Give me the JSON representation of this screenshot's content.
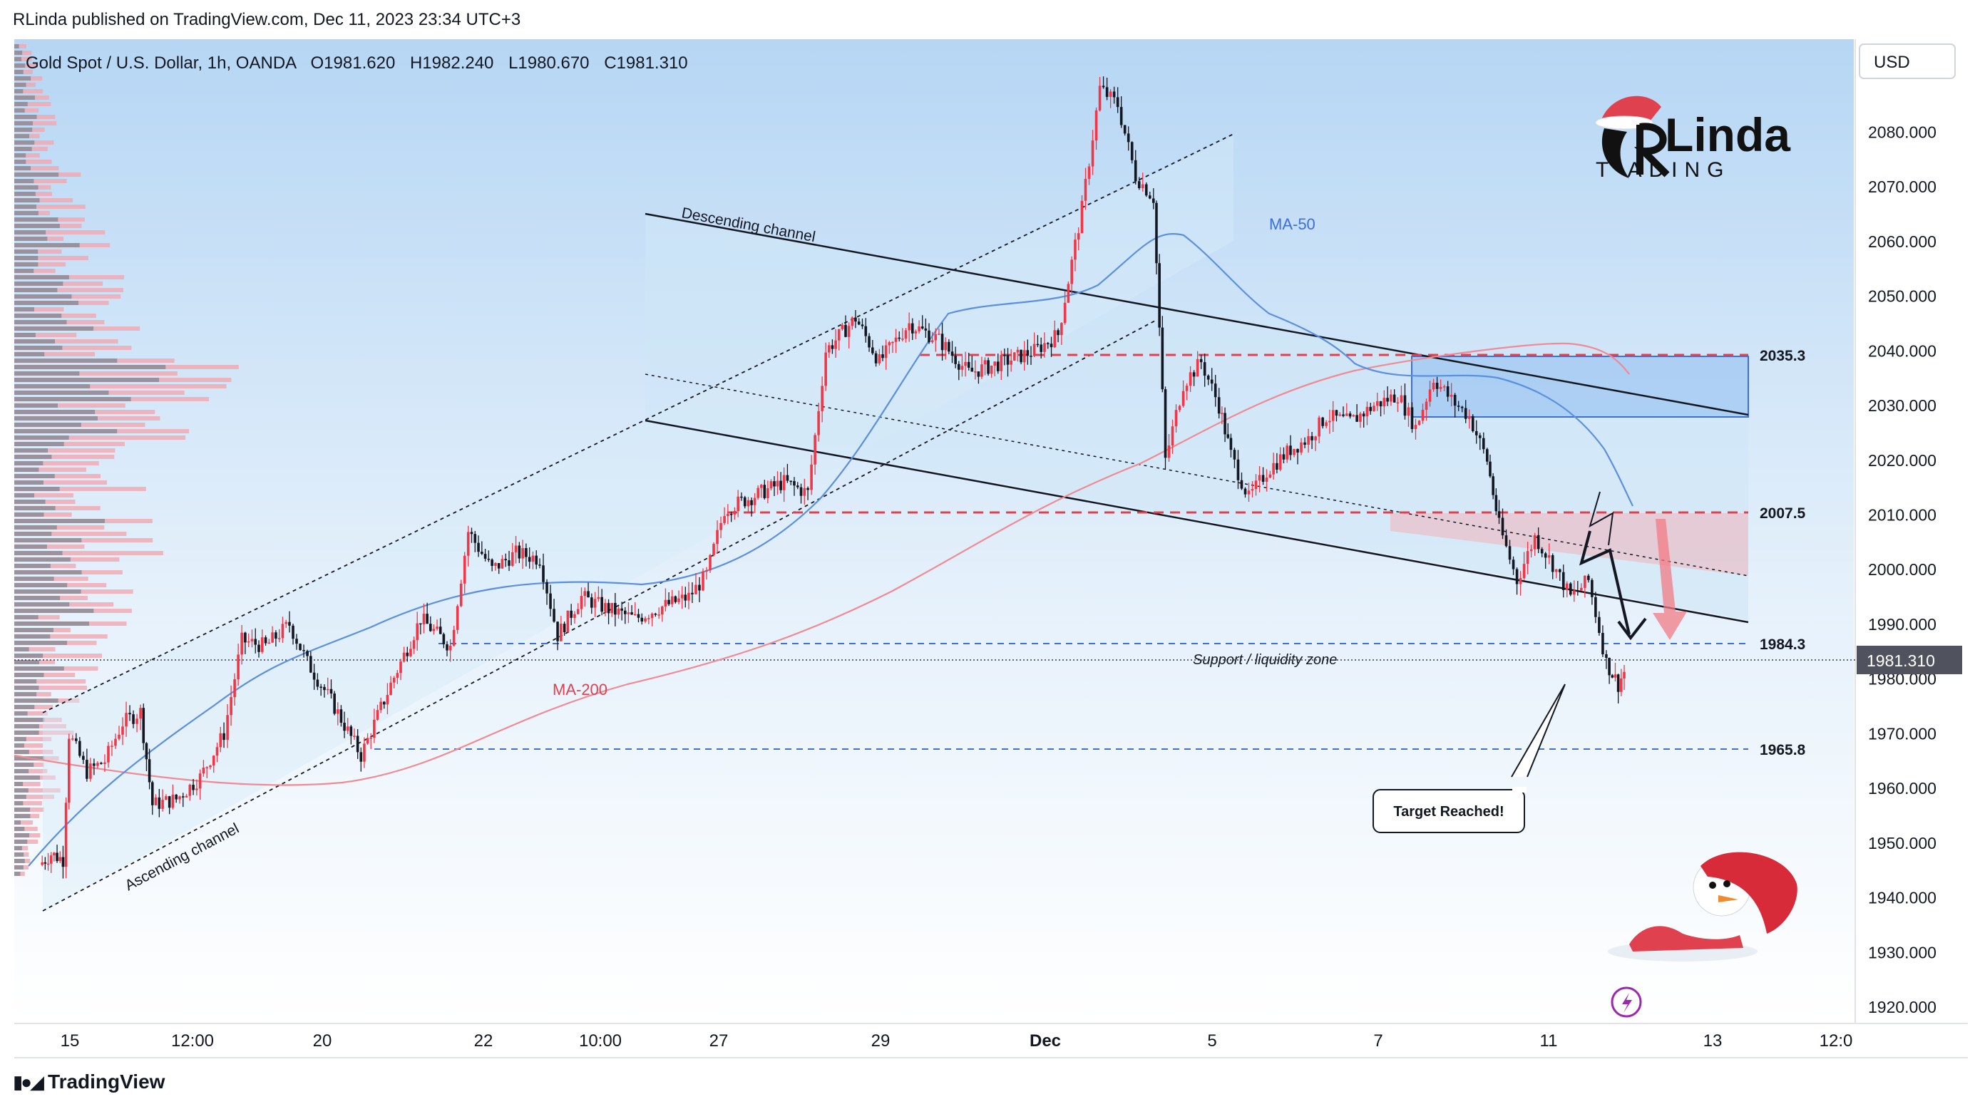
{
  "header": {
    "published": "RLinda published on TradingView.com, Dec 11, 2023 23:34 UTC+3"
  },
  "legend": {
    "symbol": "Gold Spot / U.S. Dollar, 1h, OANDA",
    "open": "O1981.620",
    "high": "H1982.240",
    "low": "L1980.670",
    "close": "C1981.310"
  },
  "currency_button": "USD",
  "brand": {
    "line1": "Linda",
    "line2": "T ADING"
  },
  "footer": {
    "logo_text": "TradingView"
  },
  "annotations": {
    "descending_channel": "Descending channel",
    "ascending_channel": "Ascending channel",
    "ma50": "MA-50",
    "ma200": "MA-200",
    "support_zone": "Support / liquidity zone",
    "target": "Target Reached!"
  },
  "levels": [
    {
      "value": 2035.3,
      "label": "2035.3",
      "style": "red-dashed"
    },
    {
      "value": 2007.5,
      "label": "2007.5",
      "style": "red-dashed"
    },
    {
      "value": 1984.3,
      "label": "1984.3",
      "style": "blue-dashed"
    },
    {
      "value": 1965.8,
      "label": "1965.8",
      "style": "blue-dashed"
    }
  ],
  "last_price": "1981.310",
  "colors": {
    "up": "#f23645",
    "down": "#131722",
    "ma50": "#5b8fe0",
    "ma200": "#f08a93",
    "level_red": "#e0414f",
    "level_blue": "#3c6fd8",
    "bg_top": "#b9d9f5",
    "bg_bottom": "#ffffff"
  },
  "chart_data": {
    "type": "candlestick",
    "title": "Gold Spot / U.S. Dollar, 1h, OANDA",
    "ylim": [
      1917,
      2097
    ],
    "y_ticks": [
      "2080.000",
      "2070.000",
      "2060.000",
      "2050.000",
      "2040.000",
      "2030.000",
      "2020.000",
      "2010.000",
      "2000.000",
      "1990.000",
      "1980.000",
      "1970.000",
      "1960.000",
      "1950.000",
      "1940.000",
      "1930.000",
      "1920.000"
    ],
    "x_ticks": [
      "15",
      "12:00",
      "20",
      "22",
      "10:00",
      "27",
      "29",
      "Dec",
      "5",
      "7",
      "11",
      "13",
      "12:0"
    ],
    "price_path": [
      [
        0,
        1946
      ],
      [
        0.01,
        1948
      ],
      [
        0.02,
        1947
      ],
      [
        0.025,
        1970
      ],
      [
        0.04,
        1963
      ],
      [
        0.055,
        1965
      ],
      [
        0.07,
        1972
      ],
      [
        0.085,
        1974
      ],
      [
        0.095,
        1957
      ],
      [
        0.115,
        1958
      ],
      [
        0.135,
        1962
      ],
      [
        0.155,
        1970
      ],
      [
        0.17,
        1987
      ],
      [
        0.19,
        1986
      ],
      [
        0.21,
        1990
      ],
      [
        0.225,
        1983
      ],
      [
        0.245,
        1976
      ],
      [
        0.27,
        1966
      ],
      [
        0.295,
        1979
      ],
      [
        0.32,
        1991
      ],
      [
        0.345,
        1986
      ],
      [
        0.36,
        2007
      ],
      [
        0.38,
        2000
      ],
      [
        0.4,
        2003
      ],
      [
        0.42,
        2002
      ],
      [
        0.435,
        1988
      ],
      [
        0.455,
        1995
      ],
      [
        0.475,
        1993
      ],
      [
        0.5,
        1991
      ],
      [
        0.52,
        1993
      ],
      [
        0.545,
        1995
      ],
      [
        0.56,
        1999
      ],
      [
        0.575,
        2011
      ],
      [
        0.595,
        2013
      ],
      [
        0.625,
        2016
      ],
      [
        0.645,
        2014
      ],
      [
        0.66,
        2040
      ],
      [
        0.685,
        2046
      ],
      [
        0.705,
        2038
      ],
      [
        0.73,
        2045
      ],
      [
        0.755,
        2042
      ],
      [
        0.78,
        2036
      ],
      [
        0.81,
        2038
      ],
      [
        0.835,
        2040
      ],
      [
        0.855,
        2043
      ],
      [
        0.875,
        2066
      ],
      [
        0.89,
        2088
      ],
      [
        0.905,
        2085
      ],
      [
        0.92,
        2072
      ],
      [
        0.935,
        2068
      ],
      [
        0.945,
        2020
      ],
      [
        0.96,
        2034
      ],
      [
        0.975,
        2038
      ],
      [
        0.99,
        2030
      ],
      [
        1.0,
        2021
      ],
      [
        1.015,
        2013
      ]
    ],
    "price_path_2": [
      [
        1.03,
        2018
      ],
      [
        1.05,
        2022
      ],
      [
        1.065,
        2024
      ],
      [
        1.08,
        2028
      ],
      [
        1.1,
        2027
      ],
      [
        1.12,
        2030
      ],
      [
        1.14,
        2032
      ],
      [
        1.155,
        2026
      ],
      [
        1.17,
        2035
      ],
      [
        1.185,
        2031
      ],
      [
        1.2,
        2028
      ],
      [
        1.215,
        2020
      ],
      [
        1.225,
        2008
      ],
      [
        1.24,
        1998
      ],
      [
        1.255,
        2006
      ],
      [
        1.27,
        2001
      ],
      [
        1.285,
        1995
      ],
      [
        1.3,
        1998
      ],
      [
        1.315,
        1983
      ],
      [
        1.325,
        1979
      ],
      [
        1.33,
        1981.31
      ]
    ]
  }
}
